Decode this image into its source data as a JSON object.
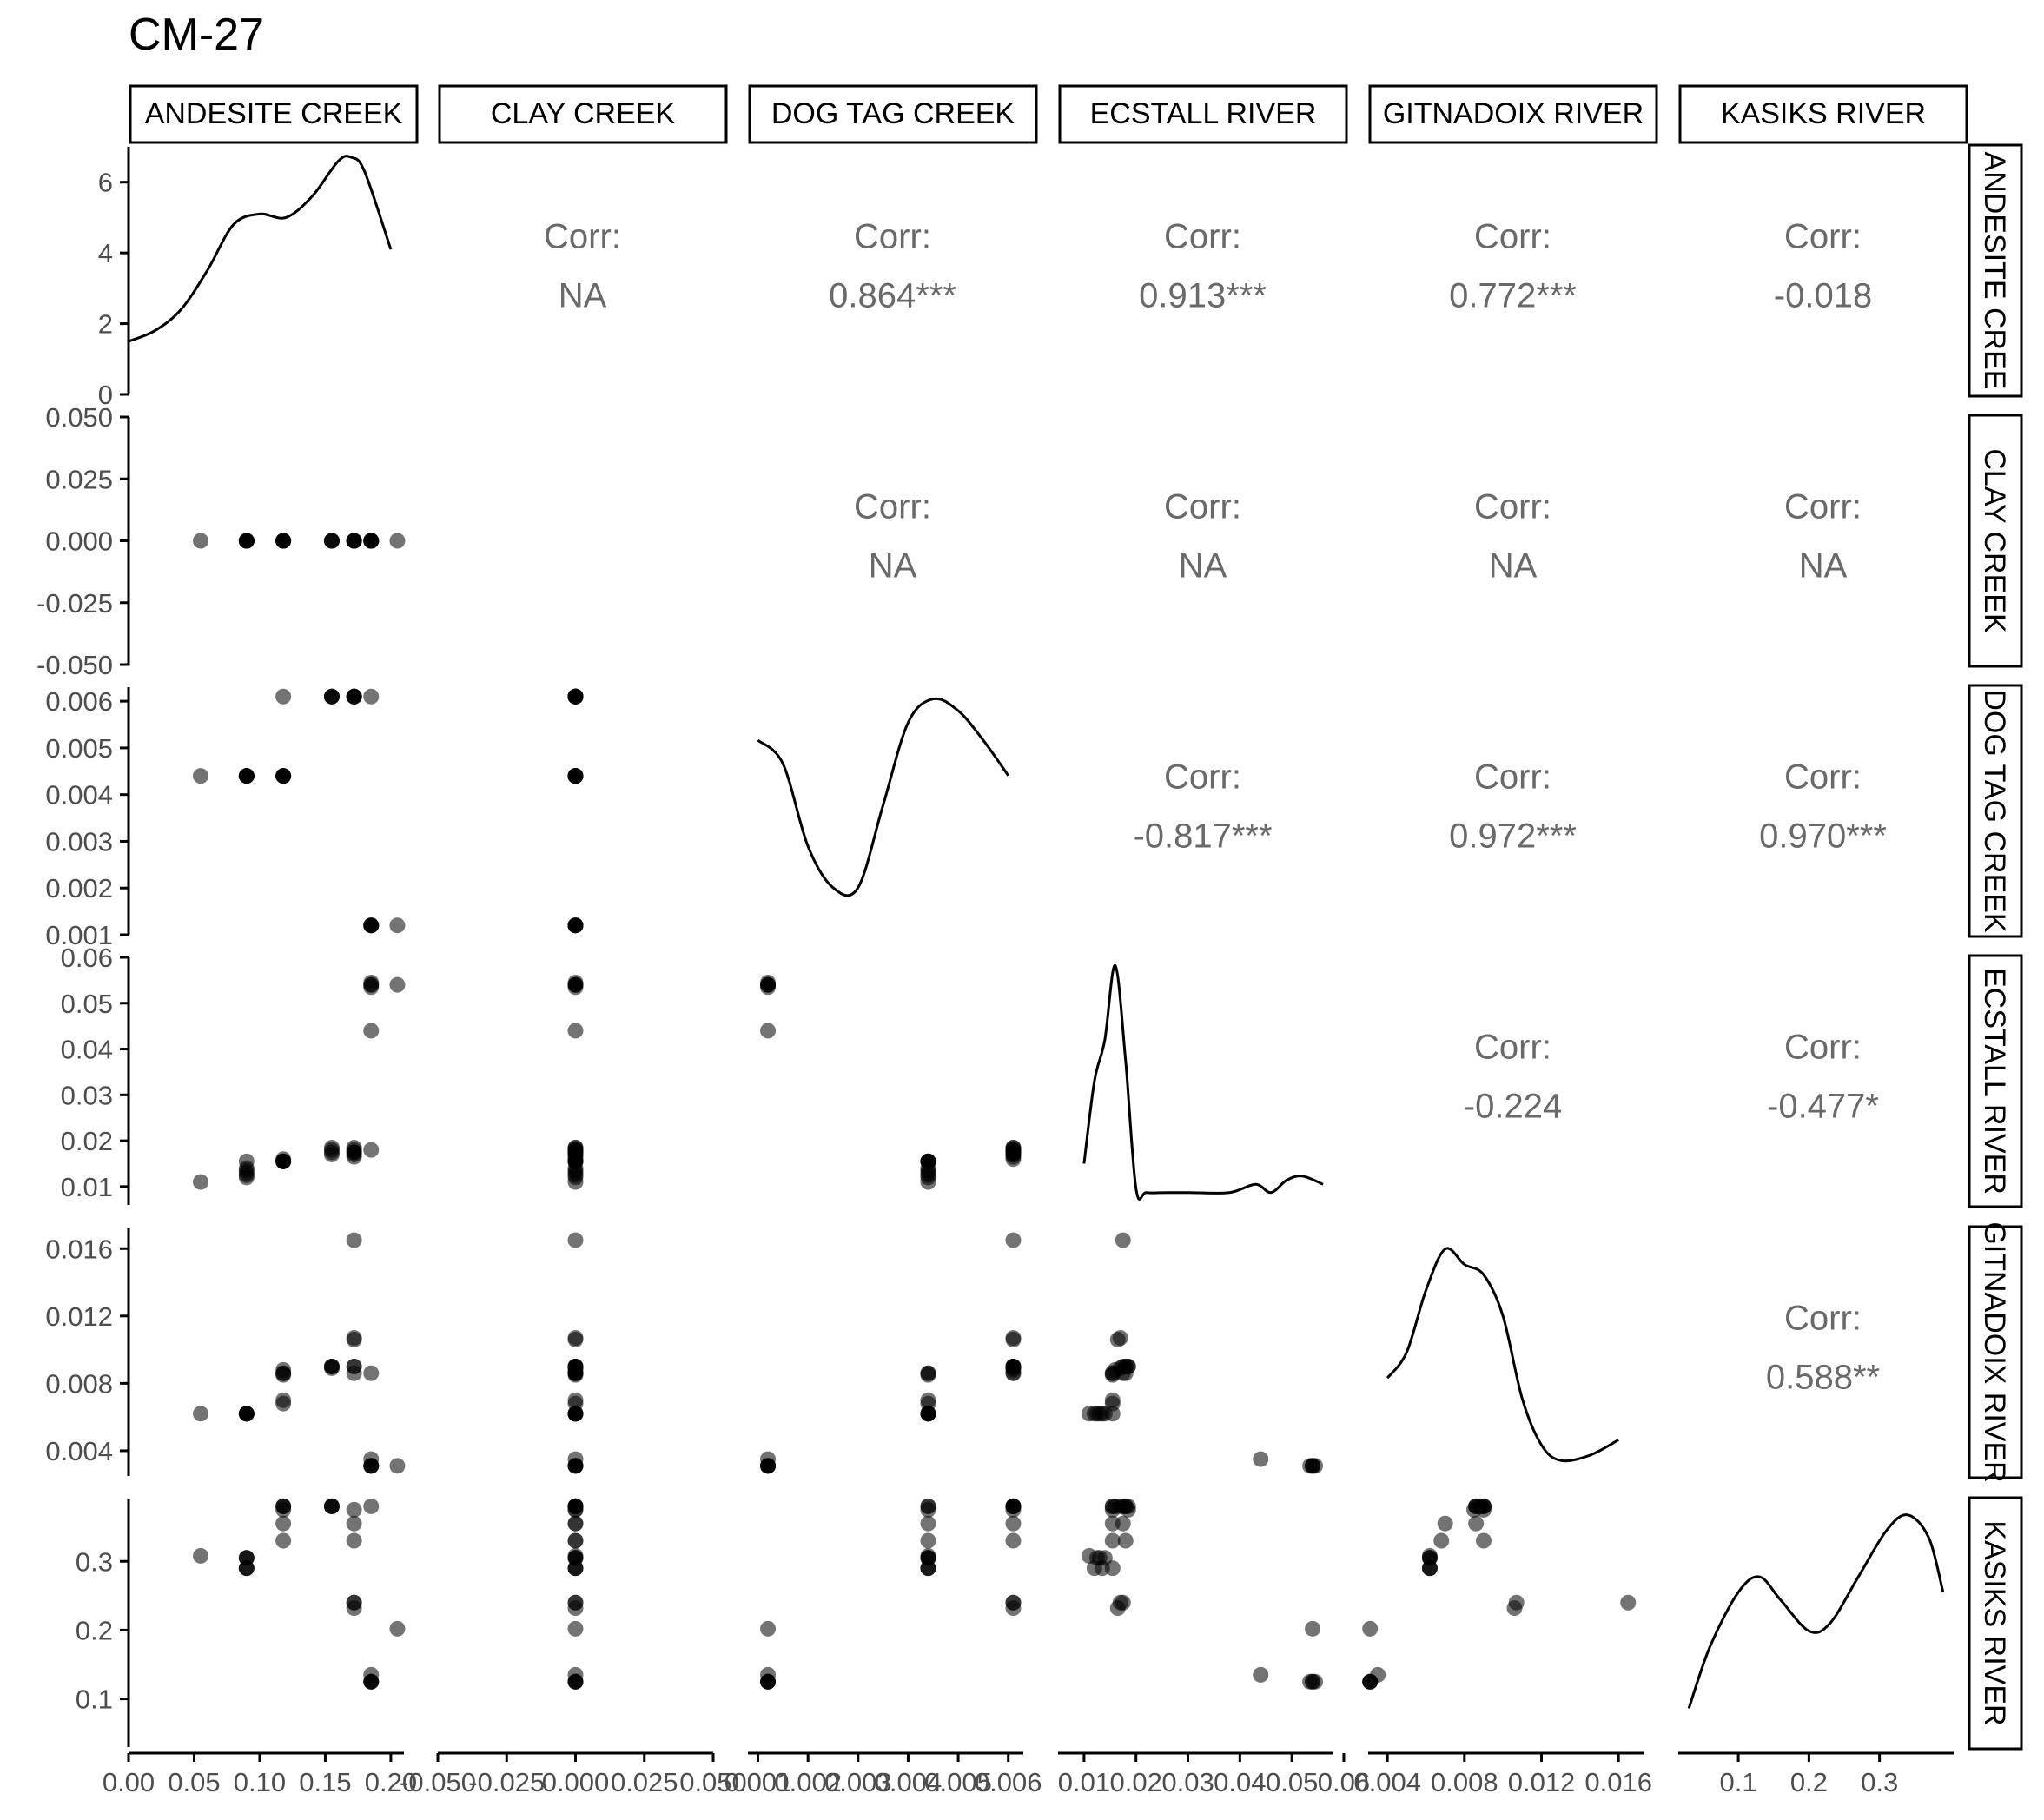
{
  "chart_data": {
    "type": "scatter",
    "title": "CM-27",
    "variables": [
      "ANDESITE CREEK",
      "CLAY CREEK",
      "DOG TAG CREEK",
      "ECSTALL RIVER",
      "GITNADOIX RIVER",
      "KASIKS RIVER"
    ],
    "row_strip_labels": [
      "ANDESITE CREE",
      "CLAY CREEK",
      "DOG TAG CREEK",
      "ECSTALL RIVER",
      "GITNADOIX RIVER",
      "KASIKS RIVER"
    ],
    "corr_label": "Corr:",
    "correlations": [
      {
        "row": 0,
        "col": 1,
        "value": "NA"
      },
      {
        "row": 0,
        "col": 2,
        "value": "0.864***"
      },
      {
        "row": 0,
        "col": 3,
        "value": "0.913***"
      },
      {
        "row": 0,
        "col": 4,
        "value": "0.772***"
      },
      {
        "row": 0,
        "col": 5,
        "value": "-0.018"
      },
      {
        "row": 1,
        "col": 2,
        "value": "NA"
      },
      {
        "row": 1,
        "col": 3,
        "value": "NA"
      },
      {
        "row": 1,
        "col": 4,
        "value": "NA"
      },
      {
        "row": 1,
        "col": 5,
        "value": "NA"
      },
      {
        "row": 2,
        "col": 3,
        "value": "-0.817***"
      },
      {
        "row": 2,
        "col": 4,
        "value": "0.972***"
      },
      {
        "row": 2,
        "col": 5,
        "value": "0.970***"
      },
      {
        "row": 3,
        "col": 4,
        "value": "-0.224"
      },
      {
        "row": 3,
        "col": 5,
        "value": "-0.477*"
      },
      {
        "row": 4,
        "col": 5,
        "value": "0.588**"
      }
    ],
    "x_axes": [
      {
        "range": [
          0.0,
          0.21
        ],
        "ticks": [
          0.0,
          0.05,
          0.1,
          0.15,
          0.2
        ],
        "tick_labels": [
          "0.00",
          "0.05",
          "0.10",
          "0.15",
          "0.20"
        ]
      },
      {
        "range": [
          -0.05,
          0.05
        ],
        "ticks": [
          -0.05,
          -0.025,
          0.0,
          0.025,
          0.05
        ],
        "tick_labels": [
          "-0.050",
          "-0.025",
          "0.000",
          "0.025",
          "0.050"
        ]
      },
      {
        "range": [
          0.0008,
          0.0063
        ],
        "ticks": [
          0.001,
          0.002,
          0.003,
          0.004,
          0.005,
          0.006
        ],
        "tick_labels": [
          "0.001",
          "0.002",
          "0.003",
          "0.004",
          "0.005",
          "0.006"
        ]
      },
      {
        "range": [
          0.005,
          0.058
        ],
        "ticks": [
          0.01,
          0.02,
          0.03,
          0.04,
          0.05,
          0.06
        ],
        "tick_labels": [
          "0.01",
          "0.02",
          "0.03",
          "0.04",
          "0.05",
          "0.06"
        ]
      },
      {
        "range": [
          0.003,
          0.0173
        ],
        "ticks": [
          0.004,
          0.008,
          0.012,
          0.016
        ],
        "tick_labels": [
          "0.004",
          "0.008",
          "0.012",
          "0.016"
        ]
      },
      {
        "range": [
          0.015,
          0.405
        ],
        "ticks": [
          0.1,
          0.2,
          0.3
        ],
        "tick_labels": [
          "0.1",
          "0.2",
          "0.3"
        ]
      }
    ],
    "y_axes": [
      {
        "range": [
          0,
          7
        ],
        "ticks": [
          0,
          2,
          4,
          6
        ],
        "tick_labels": [
          "0",
          "2",
          "4",
          "6"
        ]
      },
      {
        "range": [
          -0.05,
          0.05
        ],
        "ticks": [
          -0.05,
          -0.025,
          0.0,
          0.025,
          0.05
        ],
        "tick_labels": [
          "-0.050",
          "-0.025",
          "0.000",
          "0.025",
          "0.050"
        ]
      },
      {
        "range": [
          0.001,
          0.0063
        ],
        "ticks": [
          0.001,
          0.002,
          0.003,
          0.004,
          0.005,
          0.006
        ],
        "tick_labels": [
          "0.001",
          "0.002",
          "0.003",
          "0.004",
          "0.005",
          "0.006"
        ]
      },
      {
        "range": [
          0.006,
          0.06
        ],
        "ticks": [
          0.01,
          0.02,
          0.03,
          0.04,
          0.05,
          0.06
        ],
        "tick_labels": [
          "0.01",
          "0.02",
          "0.03",
          "0.04",
          "0.05",
          "0.06"
        ]
      },
      {
        "range": [
          0.0025,
          0.0172
        ],
        "ticks": [
          0.004,
          0.008,
          0.012,
          0.016
        ],
        "tick_labels": [
          "0.004",
          "0.008",
          "0.012",
          "0.016"
        ]
      },
      {
        "range": [
          0.03,
          0.39
        ],
        "ticks": [
          0.1,
          0.2,
          0.3
        ],
        "tick_labels": [
          "0.1",
          "0.2",
          "0.3"
        ]
      }
    ],
    "density_curves": [
      {
        "var": 0,
        "y_range": [
          0,
          7
        ],
        "x": [
          0.0,
          0.02,
          0.04,
          0.06,
          0.08,
          0.1,
          0.12,
          0.14,
          0.16,
          0.17,
          0.18,
          0.2
        ],
        "y": [
          1.5,
          1.8,
          2.4,
          3.5,
          4.8,
          5.1,
          5.0,
          5.6,
          6.6,
          6.7,
          6.3,
          4.1
        ]
      },
      {
        "var": 2,
        "y_range": [
          0,
          4.2
        ],
        "x": [
          0.001,
          0.0015,
          0.002,
          0.0025,
          0.003,
          0.0035,
          0.004,
          0.0045,
          0.005,
          0.0055,
          0.006
        ],
        "y": [
          3.3,
          2.9,
          1.5,
          0.8,
          0.8,
          2.2,
          3.6,
          4.0,
          3.8,
          3.3,
          2.7
        ]
      },
      {
        "var": 3,
        "y_range": [
          0,
          6
        ],
        "x": [
          0.01,
          0.012,
          0.014,
          0.016,
          0.018,
          0.02,
          0.022,
          0.026,
          0.03,
          0.038,
          0.043,
          0.046,
          0.049,
          0.052,
          0.056
        ],
        "y": [
          1.0,
          3.0,
          4.0,
          5.8,
          3.5,
          0.4,
          0.3,
          0.3,
          0.3,
          0.3,
          0.5,
          0.3,
          0.6,
          0.7,
          0.5
        ]
      },
      {
        "var": 4,
        "y_range": [
          0,
          4.8
        ],
        "x": [
          0.004,
          0.005,
          0.006,
          0.007,
          0.008,
          0.009,
          0.01,
          0.011,
          0.012,
          0.013,
          0.0145,
          0.016
        ],
        "y": [
          1.9,
          2.4,
          3.6,
          4.4,
          4.1,
          3.9,
          3.1,
          1.5,
          0.6,
          0.3,
          0.4,
          0.7
        ]
      },
      {
        "var": 5,
        "y_range": [
          0,
          3.2
        ],
        "x": [
          0.03,
          0.06,
          0.1,
          0.13,
          0.16,
          0.2,
          0.23,
          0.27,
          0.31,
          0.34,
          0.37,
          0.39
        ],
        "y": [
          0.5,
          1.3,
          2.0,
          2.2,
          1.9,
          1.5,
          1.6,
          2.2,
          2.8,
          3.0,
          2.7,
          2.0
        ]
      }
    ],
    "points": {
      "ANDESITE CREEK": [
        0.055,
        0.09,
        0.09,
        0.09,
        0.09,
        0.09,
        0.09,
        0.118,
        0.118,
        0.118,
        0.118,
        0.118,
        0.118,
        0.155,
        0.155,
        0.155,
        0.155,
        0.172,
        0.172,
        0.172,
        0.172,
        0.172,
        0.172,
        0.185,
        0.185,
        0.185,
        0.185,
        0.185,
        0.185,
        0.205
      ],
      "CLAY CREEK": [
        0,
        0,
        0,
        0,
        0,
        0,
        0,
        0,
        0,
        0,
        0,
        0,
        0,
        0,
        0,
        0,
        0,
        0,
        0,
        0,
        0,
        0,
        0,
        0,
        0,
        0,
        0,
        0,
        0,
        0
      ],
      "DOG TAG CREEK": [
        0.0044,
        0.0044,
        0.0044,
        0.0044,
        0.0044,
        0.0044,
        0.0044,
        0.0044,
        0.0044,
        0.0044,
        0.0044,
        0.0044,
        0.0061,
        0.0061,
        0.0061,
        0.0061,
        0.0061,
        0.0061,
        0.0061,
        0.0061,
        0.0061,
        0.0061,
        0.0061,
        0.0061,
        0.0012,
        0.0012,
        0.0012,
        0.0012,
        0.0012,
        0.0012
      ],
      "ECSTALL RIVER": [
        0.011,
        0.012,
        0.013,
        0.014,
        0.0135,
        0.0125,
        0.0155,
        0.0155,
        0.0155,
        0.0155,
        0.0155,
        0.0155,
        0.016,
        0.017,
        0.0175,
        0.018,
        0.0185,
        0.0185,
        0.017,
        0.0165,
        0.0175,
        0.018,
        0.0175,
        0.018,
        0.044,
        0.0535,
        0.0545,
        0.054,
        0.054,
        0.054
      ],
      "GITNADOIX RIVER": [
        0.0062,
        0.0062,
        0.0062,
        0.0062,
        0.0062,
        0.0062,
        0.0062,
        0.0068,
        0.007,
        0.0085,
        0.0086,
        0.0086,
        0.0088,
        0.0089,
        0.009,
        0.009,
        0.009,
        0.009,
        0.0107,
        0.0106,
        0.0165,
        0.009,
        0.0086,
        0.0086,
        0.0035,
        0.0031,
        0.0031,
        0.0031,
        0.0031,
        0.0031
      ],
      "KASIKS RIVER": [
        0.308,
        0.29,
        0.305,
        0.305,
        0.29,
        0.305,
        0.29,
        0.33,
        0.355,
        0.375,
        0.38,
        0.38,
        0.38,
        0.38,
        0.38,
        0.38,
        0.38,
        0.375,
        0.24,
        0.232,
        0.24,
        0.33,
        0.355,
        0.38,
        0.135,
        0.125,
        0.125,
        0.125,
        0.125,
        0.202
      ]
    }
  }
}
